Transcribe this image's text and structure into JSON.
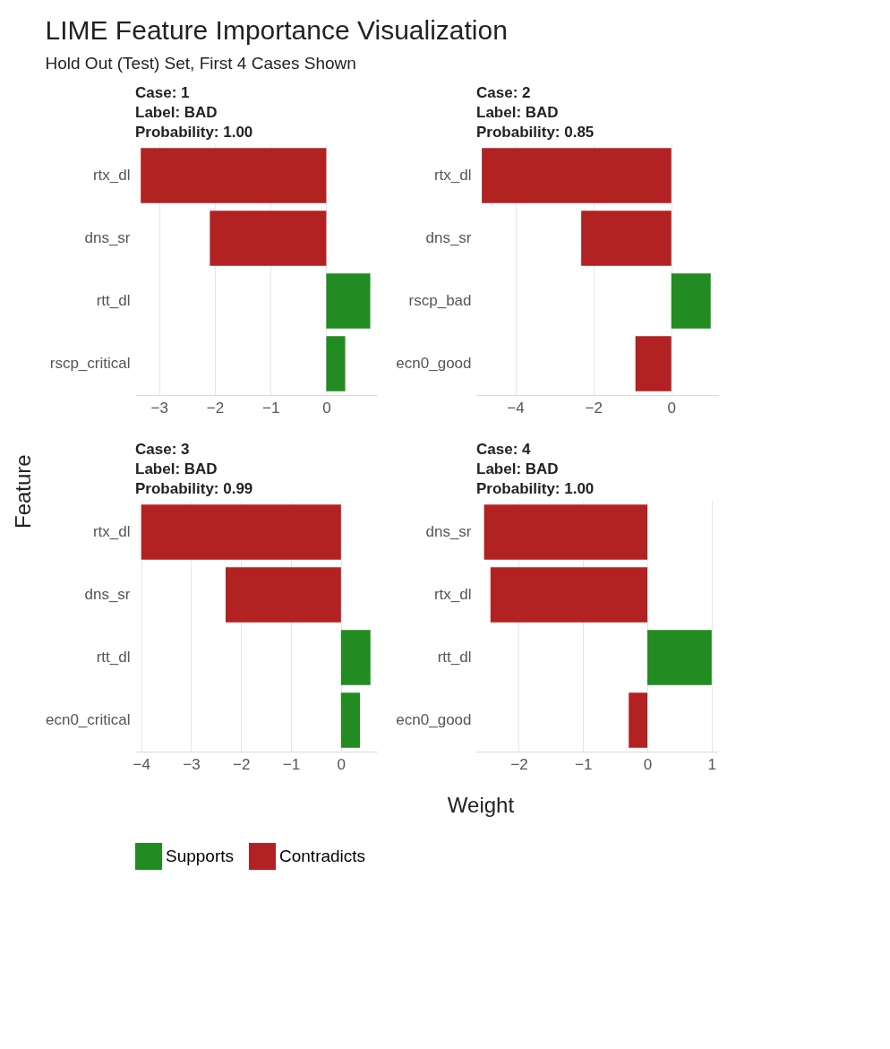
{
  "chart_data": [
    {
      "type": "bar",
      "orientation": "horizontal",
      "title": "LIME Feature Importance Visualization",
      "annotations": [
        "Case: 1\nLabel: BAD\nProbability: 1.00"
      ],
      "legend": "bottom",
      "subtitle": "Hold Out (Test) Set, First 4 Cases Shown",
      "ylabel": "Feature",
      "categories": [
        "rtx_dl",
        "dns_sr",
        "rtt_dl",
        "rscp_critical"
      ],
      "xlim": [
        -3.43,
        0.91
      ],
      "xticks": [
        -3,
        -2,
        -1,
        0
      ],
      "grid": "x",
      "series": [
        {
          "name": "Supports",
          "color": "#228b22",
          "values": [
            null,
            null,
            0.79,
            0.34
          ]
        },
        {
          "name": "Contradicts",
          "color": "#b22222",
          "values": [
            -3.33,
            -2.09,
            null,
            null
          ]
        }
      ]
    },
    {
      "type": "bar",
      "orientation": "horizontal",
      "title": "Case: 2\nLabel: BAD\nProbability: 0.85",
      "categories": [
        "rtx_dl",
        "dns_sr",
        "rscp_bad",
        "ecn0_good"
      ],
      "xlim": [
        -5.0,
        1.2
      ],
      "xticks": [
        -4,
        -2,
        0
      ],
      "grid": "x",
      "series": [
        {
          "name": "Supports",
          "color": "#228b22",
          "values": [
            null,
            null,
            1.01,
            null
          ]
        },
        {
          "name": "Contradicts",
          "color": "#b22222",
          "values": [
            -4.86,
            -2.31,
            null,
            -0.92
          ]
        }
      ]
    },
    {
      "type": "bar",
      "orientation": "horizontal",
      "title": "Case: 3\nLabel: BAD\nProbability: 0.99",
      "xlabel": "Weight",
      "categories": [
        "rtx_dl",
        "dns_sr",
        "rtt_dl",
        "ecn0_critical"
      ],
      "xlim": [
        -4.12,
        0.72
      ],
      "xticks": [
        -4,
        -3,
        -2,
        -1,
        0
      ],
      "grid": "x",
      "series": [
        {
          "name": "Supports",
          "color": "#228b22",
          "values": [
            null,
            null,
            0.59,
            0.38
          ]
        },
        {
          "name": "Contradicts",
          "color": "#b22222",
          "values": [
            -4.0,
            -2.31,
            null,
            null
          ]
        }
      ]
    },
    {
      "type": "bar",
      "orientation": "horizontal",
      "title": "Case: 4\nLabel: BAD\nProbability: 1.00",
      "categories": [
        "dns_sr",
        "rtx_dl",
        "rtt_dl",
        "ecn0_good"
      ],
      "xlim": [
        -2.66,
        1.1
      ],
      "xticks": [
        -2,
        -1,
        0,
        1
      ],
      "grid": "x",
      "series": [
        {
          "name": "Supports",
          "color": "#228b22",
          "values": [
            null,
            null,
            1.0,
            null
          ]
        },
        {
          "name": "Contradicts",
          "color": "#b22222",
          "values": [
            -2.54,
            -2.44,
            null,
            -0.29
          ]
        }
      ]
    }
  ]
}
